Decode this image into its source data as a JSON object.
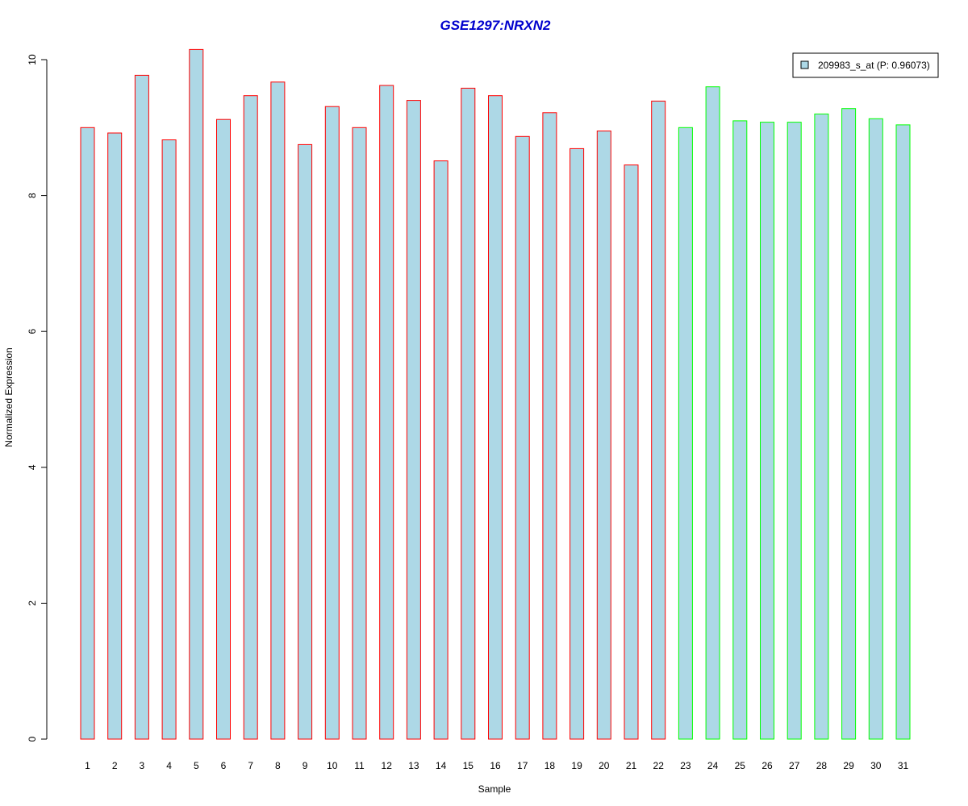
{
  "chart_data": {
    "type": "bar",
    "title": "GSE1297:NRXN2",
    "xlabel": "Sample",
    "ylabel": "Normalized Expression",
    "ylim": [
      0,
      10.2
    ],
    "yticks": [
      0,
      2,
      4,
      6,
      8,
      10
    ],
    "grid": false,
    "legend_position": "top-right",
    "categories": [
      "1",
      "2",
      "3",
      "4",
      "5",
      "6",
      "7",
      "8",
      "9",
      "10",
      "11",
      "12",
      "13",
      "14",
      "15",
      "16",
      "17",
      "18",
      "19",
      "20",
      "21",
      "22",
      "23",
      "24",
      "25",
      "26",
      "27",
      "28",
      "29",
      "30",
      "31"
    ],
    "series": [
      {
        "name": "209983_s_at (P: 0.96073)",
        "values": [
          9.0,
          8.92,
          9.77,
          8.82,
          10.15,
          9.12,
          9.47,
          9.67,
          8.75,
          9.31,
          9.0,
          9.62,
          9.4,
          8.51,
          9.58,
          9.47,
          8.87,
          9.22,
          8.69,
          8.95,
          8.45,
          9.39,
          9.0,
          9.6,
          9.1,
          9.08,
          9.08,
          9.2,
          9.28,
          9.13,
          9.04
        ]
      }
    ],
    "group_border": [
      "red",
      "red",
      "red",
      "red",
      "red",
      "red",
      "red",
      "red",
      "red",
      "red",
      "red",
      "red",
      "red",
      "red",
      "red",
      "red",
      "red",
      "red",
      "red",
      "red",
      "red",
      "red",
      "green",
      "green",
      "green",
      "green",
      "green",
      "green",
      "green",
      "green",
      "green"
    ],
    "colors": {
      "bar_fill": "#add8e6",
      "red": "#ff0000",
      "green": "#00ff00",
      "title": "#0000cd",
      "axis": "#000000"
    }
  }
}
